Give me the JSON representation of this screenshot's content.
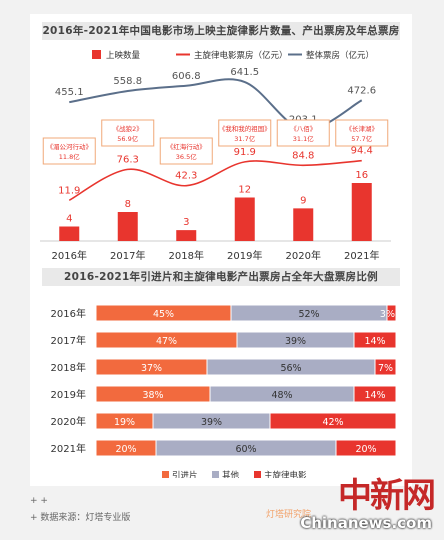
{
  "chart_data": [
    {
      "type": "bar",
      "title": "2016年-2021年中国电影市场上映主旋律影片数量、产出票房及年总票房",
      "categories": [
        "2016年",
        "2017年",
        "2018年",
        "2019年",
        "2020年",
        "2021年"
      ],
      "series": [
        {
          "name": "上映数量",
          "type": "bar",
          "values": [
            4,
            8,
            3,
            12,
            9,
            16
          ],
          "color": "#e8352e"
        },
        {
          "name": "主旋律电影票房（亿元）",
          "type": "line",
          "values": [
            11.9,
            76.3,
            42.3,
            91.9,
            84.8,
            94.4
          ],
          "color": "#e8352e"
        },
        {
          "name": "整体票房（亿元）",
          "type": "line",
          "values": [
            455.1,
            558.8,
            606.8,
            641.5,
            203.1,
            472.6
          ],
          "color": "#5b6f8a"
        }
      ],
      "annotations": [
        {
          "category": "2016年",
          "film": "《湄公河行动》",
          "value": "11.8亿"
        },
        {
          "category": "2017年",
          "film": "《战狼2》",
          "value": "56.9亿"
        },
        {
          "category": "2018年",
          "film": "《红海行动》",
          "value": "36.5亿"
        },
        {
          "category": "2019年",
          "film": "《我和我的祖国》",
          "value": "31.7亿"
        },
        {
          "category": "2020年",
          "film": "《八佰》",
          "value": "31.1亿"
        },
        {
          "category": "2021年",
          "film": "《长津湖》",
          "value": "57.7亿"
        }
      ],
      "legend_position": "top"
    },
    {
      "type": "bar",
      "subtype": "stacked-horizontal-percent",
      "title": "2016-2021年引进片和主旋律电影产出票房占全年大盘票房比例",
      "categories": [
        "2016年",
        "2017年",
        "2018年",
        "2019年",
        "2020年",
        "2021年"
      ],
      "series": [
        {
          "name": "引进片",
          "values": [
            45,
            47,
            37,
            38,
            19,
            20
          ],
          "color": "#f26a3e"
        },
        {
          "name": "其他",
          "values": [
            52,
            39,
            56,
            48,
            39,
            60
          ],
          "color": "#a9adc4"
        },
        {
          "name": "主旋律电影",
          "values": [
            3,
            14,
            7,
            14,
            42,
            20
          ],
          "color": "#e8352e"
        }
      ],
      "xlim": [
        0,
        100
      ],
      "legend_position": "bottom"
    }
  ],
  "footer": {
    "plus": "+ +",
    "source": "+  数据来源：灯塔专业版",
    "logo_text": "灯塔研究院"
  },
  "watermark": {
    "cn": "中新网",
    "en": "Chinanews.com"
  }
}
